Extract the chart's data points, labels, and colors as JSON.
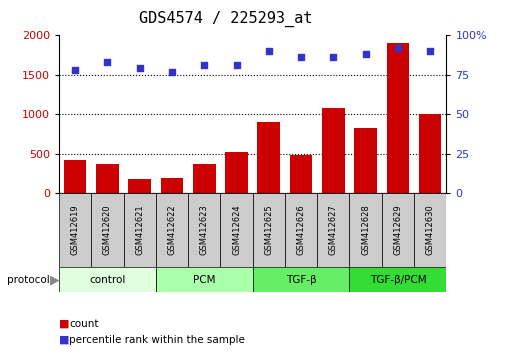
{
  "title": "GDS4574 / 225293_at",
  "samples": [
    "GSM412619",
    "GSM412620",
    "GSM412621",
    "GSM412622",
    "GSM412623",
    "GSM412624",
    "GSM412625",
    "GSM412626",
    "GSM412627",
    "GSM412628",
    "GSM412629",
    "GSM412630"
  ],
  "counts": [
    420,
    370,
    175,
    185,
    370,
    520,
    900,
    480,
    1080,
    820,
    1900,
    1000
  ],
  "percentile": [
    78,
    83,
    79,
    77,
    81,
    81,
    90,
    86,
    86,
    88,
    92,
    90
  ],
  "bar_color": "#cc0000",
  "dot_color": "#3333cc",
  "left_ylim": [
    0,
    2000
  ],
  "right_ylim": [
    0,
    100
  ],
  "left_yticks": [
    0,
    500,
    1000,
    1500,
    2000
  ],
  "right_yticks": [
    0,
    25,
    50,
    75,
    100
  ],
  "groups": [
    {
      "label": "control",
      "start": 0,
      "end": 3,
      "color": "#dfffdf"
    },
    {
      "label": "PCM",
      "start": 3,
      "end": 6,
      "color": "#aaffaa"
    },
    {
      "label": "TGF-β",
      "start": 6,
      "end": 9,
      "color": "#66ee66"
    },
    {
      "label": "TGF-β/PCM",
      "start": 9,
      "end": 12,
      "color": "#33dd33"
    }
  ],
  "protocol_label": "protocol",
  "legend_count_label": "count",
  "legend_pct_label": "percentile rank within the sample",
  "bg_color": "#ffffff",
  "plot_bg_color": "#ffffff",
  "tick_label_color_left": "#cc0000",
  "tick_label_color_right": "#3333cc",
  "title_fontsize": 11,
  "tick_fontsize": 8,
  "sample_box_color": "#cccccc",
  "right_top_label": "100%"
}
